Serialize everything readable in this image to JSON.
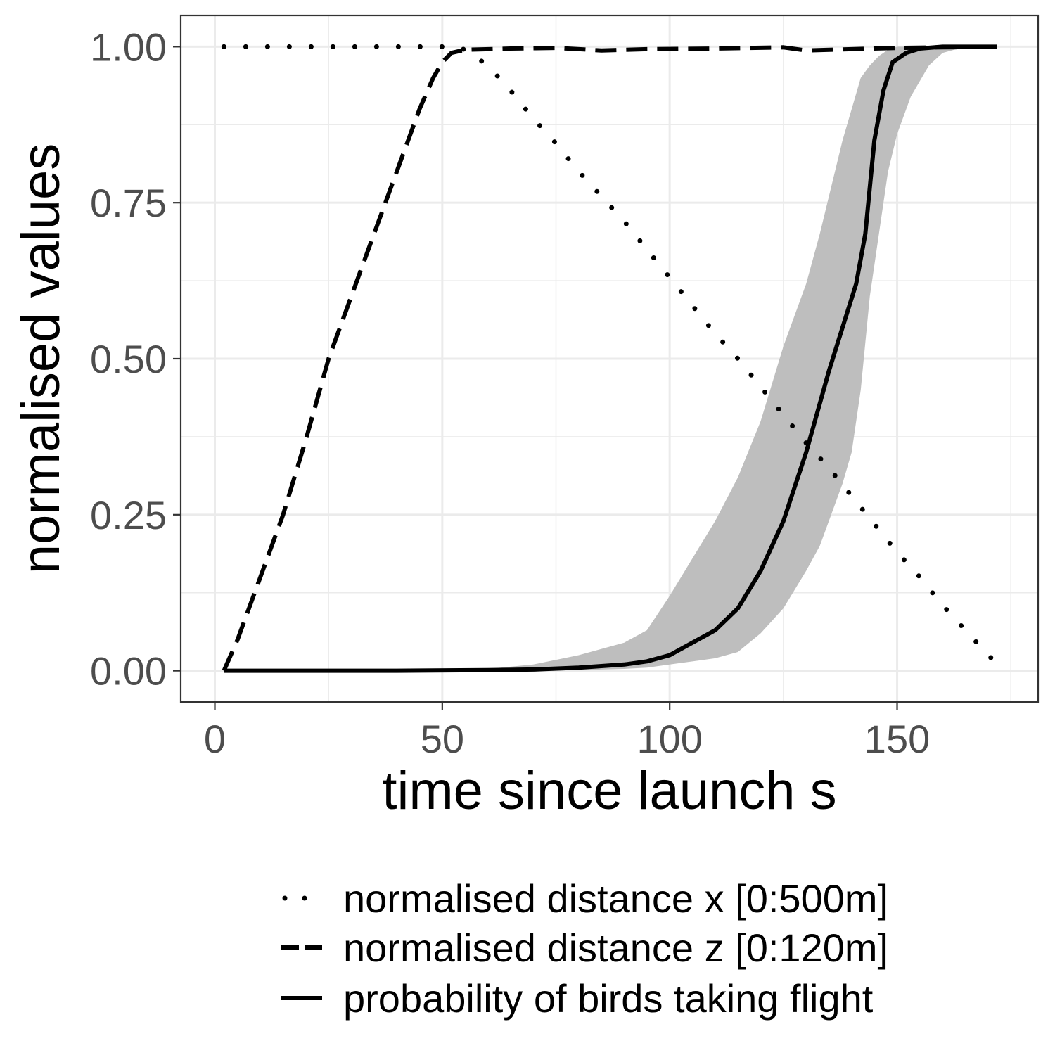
{
  "chart_data": {
    "type": "line",
    "title": "",
    "xlabel": "time since launch s",
    "ylabel": "normalised values",
    "xlim": [
      -7.5,
      181
    ],
    "ylim": [
      -0.05,
      1.05
    ],
    "x_ticks": [
      0,
      50,
      100,
      150
    ],
    "x_tick_labels": [
      "0",
      "50",
      "100",
      "150"
    ],
    "y_ticks": [
      0,
      0.25,
      0.5,
      0.75,
      1
    ],
    "y_tick_labels": [
      "0.00",
      "0.25",
      "0.50",
      "0.75",
      "1.00"
    ],
    "grid": true,
    "legend_position": "bottom",
    "colors": {
      "line": "#000000",
      "ribbon": "#bebebe",
      "grid": "#ebebeb",
      "panel_border": "#333333"
    },
    "series": [
      {
        "name": "normalised distance x [0:500m]",
        "linestyle": "dotted",
        "points": [
          [
            2,
            1
          ],
          [
            10,
            1
          ],
          [
            20,
            1
          ],
          [
            30,
            1
          ],
          [
            40,
            1
          ],
          [
            50,
            1
          ],
          [
            53,
            1
          ],
          [
            55,
            0.995
          ],
          [
            60,
            0.97
          ],
          [
            65,
            0.93
          ],
          [
            70,
            0.885
          ],
          [
            75,
            0.845
          ],
          [
            80,
            0.8
          ],
          [
            85,
            0.76
          ],
          [
            90,
            0.72
          ],
          [
            95,
            0.675
          ],
          [
            100,
            0.63
          ],
          [
            105,
            0.585
          ],
          [
            110,
            0.54
          ],
          [
            115,
            0.5
          ],
          [
            120,
            0.455
          ],
          [
            125,
            0.41
          ],
          [
            130,
            0.365
          ],
          [
            135,
            0.325
          ],
          [
            140,
            0.28
          ],
          [
            145,
            0.235
          ],
          [
            150,
            0.19
          ],
          [
            155,
            0.15
          ],
          [
            160,
            0.105
          ],
          [
            165,
            0.065
          ],
          [
            172,
            0.01
          ]
        ]
      },
      {
        "name": "normalised distance z [0:120m]",
        "linestyle": "dashed",
        "points": [
          [
            2,
            0
          ],
          [
            5,
            0.05
          ],
          [
            10,
            0.15
          ],
          [
            15,
            0.25
          ],
          [
            20,
            0.37
          ],
          [
            25,
            0.5
          ],
          [
            30,
            0.6
          ],
          [
            35,
            0.7
          ],
          [
            40,
            0.8
          ],
          [
            45,
            0.9
          ],
          [
            48,
            0.95
          ],
          [
            50,
            0.975
          ],
          [
            52,
            0.99
          ],
          [
            55,
            0.995
          ],
          [
            65,
            0.997
          ],
          [
            75,
            0.998
          ],
          [
            85,
            0.994
          ],
          [
            95,
            0.996
          ],
          [
            110,
            0.997
          ],
          [
            125,
            0.999
          ],
          [
            130,
            0.994
          ],
          [
            140,
            0.996
          ],
          [
            150,
            0.998
          ],
          [
            160,
            0.999
          ],
          [
            172,
            1
          ]
        ]
      },
      {
        "name": "probability of birds taking flight",
        "linestyle": "solid",
        "points": [
          [
            2,
            0
          ],
          [
            20,
            0
          ],
          [
            40,
            0
          ],
          [
            60,
            0.001
          ],
          [
            70,
            0.002
          ],
          [
            80,
            0.005
          ],
          [
            90,
            0.01
          ],
          [
            95,
            0.015
          ],
          [
            100,
            0.025
          ],
          [
            105,
            0.045
          ],
          [
            110,
            0.065
          ],
          [
            115,
            0.1
          ],
          [
            120,
            0.16
          ],
          [
            125,
            0.24
          ],
          [
            130,
            0.35
          ],
          [
            135,
            0.48
          ],
          [
            138,
            0.55
          ],
          [
            141,
            0.62
          ],
          [
            143,
            0.7
          ],
          [
            145,
            0.85
          ],
          [
            147,
            0.93
          ],
          [
            149,
            0.975
          ],
          [
            152,
            0.99
          ],
          [
            155,
            0.997
          ],
          [
            160,
            1
          ],
          [
            172,
            1
          ]
        ],
        "ribbon": [
          [
            60,
            0,
            0.003
          ],
          [
            70,
            0,
            0.01
          ],
          [
            80,
            0.001,
            0.025
          ],
          [
            90,
            0.003,
            0.045
          ],
          [
            95,
            0.005,
            0.065
          ],
          [
            100,
            0.01,
            0.12
          ],
          [
            105,
            0.015,
            0.18
          ],
          [
            110,
            0.02,
            0.24
          ],
          [
            115,
            0.03,
            0.31
          ],
          [
            120,
            0.06,
            0.4
          ],
          [
            125,
            0.1,
            0.52
          ],
          [
            130,
            0.16,
            0.62
          ],
          [
            133,
            0.2,
            0.7
          ],
          [
            135,
            0.24,
            0.76
          ],
          [
            138,
            0.3,
            0.85
          ],
          [
            140,
            0.35,
            0.9
          ],
          [
            142,
            0.45,
            0.95
          ],
          [
            144,
            0.6,
            0.97
          ],
          [
            146,
            0.7,
            0.985
          ],
          [
            148,
            0.8,
            0.995
          ],
          [
            150,
            0.86,
            1
          ],
          [
            153,
            0.92,
            1
          ],
          [
            157,
            0.97,
            1
          ],
          [
            160,
            0.99,
            1
          ],
          [
            165,
            1,
            1
          ],
          [
            172,
            1,
            1
          ]
        ]
      }
    ]
  }
}
